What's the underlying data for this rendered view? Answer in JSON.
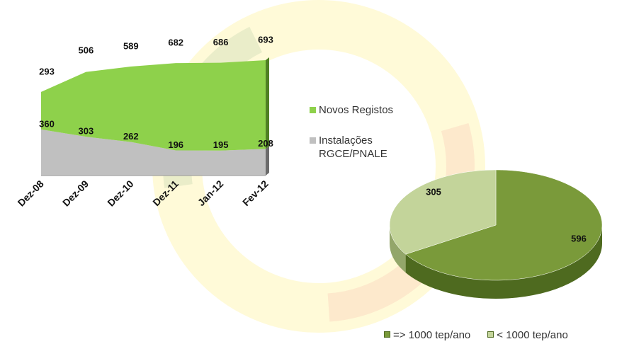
{
  "chart_data": [
    {
      "type": "area",
      "stacked": true,
      "categories": [
        "Dez-08",
        "Dez-09",
        "Dez-10",
        "Dez-11",
        "Jan-12",
        "Fev-12"
      ],
      "series": [
        {
          "name": "Instalações RGCE/PNALE",
          "color": "#c0c0c0",
          "values": [
            360,
            303,
            262,
            196,
            195,
            208
          ]
        },
        {
          "name": "Novos Registos",
          "color": "#8ed14b",
          "values": [
            293,
            506,
            589,
            682,
            686,
            693
          ]
        }
      ]
    },
    {
      "type": "pie",
      "series": [
        {
          "name": "=> 1000 tep/ano",
          "color": "#7a9a3a",
          "value": 596
        },
        {
          "name": "< 1000 tep/ano",
          "color": "#c3d49a",
          "value": 305
        }
      ]
    }
  ]
}
